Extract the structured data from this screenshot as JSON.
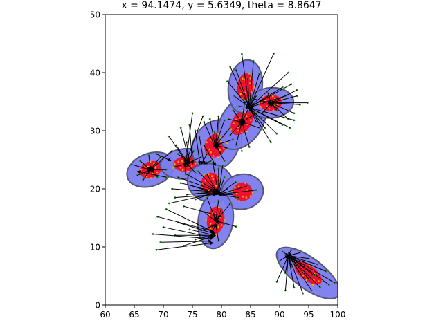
{
  "chart_data": {
    "type": "scatter",
    "title": "x = 94.1474, y = 5.6349, theta = 8.8647",
    "xlabel": "",
    "ylabel": "",
    "xlim": [
      60,
      100
    ],
    "ylim": [
      0,
      50
    ],
    "xticks": [
      "60",
      "65",
      "70",
      "75",
      "80",
      "85",
      "90",
      "95",
      "100"
    ],
    "yticks": [
      "0",
      "10",
      "20",
      "30",
      "40",
      "50"
    ],
    "grid": false,
    "legend": "none",
    "colors": {
      "outer_ellipse": "#7b7bf0",
      "outer_edge": "#555577",
      "inner_ellipse": "#ee1133",
      "point_outer": "#228b22",
      "point_inner": "#ffa500",
      "arrow": "#000000"
    },
    "clusters": [
      {
        "cx": 67.8,
        "cy": 23.3,
        "rx": 4.2,
        "ry": 2.8,
        "angle": 20,
        "irx": 2.0,
        "iry": 1.4
      },
      {
        "cx": 73.8,
        "cy": 24.3,
        "rx": 4.3,
        "ry": 2.6,
        "angle": 5,
        "irx": 2.1,
        "iry": 1.3
      },
      {
        "cx": 79.0,
        "cy": 27.5,
        "rx": 3.8,
        "ry": 4.6,
        "angle": -35,
        "irx": 1.8,
        "iry": 2.2
      },
      {
        "cx": 83.5,
        "cy": 31.5,
        "rx": 3.5,
        "ry": 5.2,
        "angle": -35,
        "irx": 1.6,
        "iry": 2.5
      },
      {
        "cx": 84.1,
        "cy": 37.6,
        "rx": 2.9,
        "ry": 4.6,
        "angle": -8,
        "irx": 1.4,
        "iry": 2.3
      },
      {
        "cx": 88.5,
        "cy": 34.8,
        "rx": 3.9,
        "ry": 2.6,
        "angle": 5,
        "irx": 1.9,
        "iry": 1.4
      },
      {
        "cx": 78.1,
        "cy": 21.0,
        "rx": 4.0,
        "ry": 3.3,
        "angle": -15,
        "irx": 1.6,
        "iry": 1.8
      },
      {
        "cx": 83.6,
        "cy": 19.5,
        "rx": 3.6,
        "ry": 3.0,
        "angle": 10,
        "irx": 1.7,
        "iry": 1.6
      },
      {
        "cx": 79.0,
        "cy": 14.6,
        "rx": 3.0,
        "ry": 4.9,
        "angle": -8,
        "irx": 1.5,
        "iry": 2.4
      },
      {
        "cx": 94.9,
        "cy": 5.5,
        "rx": 6.5,
        "ry": 2.6,
        "angle": -37,
        "irx": 2.8,
        "iry": 1.3
      }
    ],
    "vectors": [
      {
        "x": 68.8,
        "y": 9.5,
        "dx": 9.8,
        "dy": 1.2
      },
      {
        "x": 68.2,
        "y": 12.2,
        "dx": 10.3,
        "dy": -0.8
      },
      {
        "x": 69.5,
        "y": 10.8,
        "dx": 8.8,
        "dy": 0.2
      },
      {
        "x": 70.0,
        "y": 13.4,
        "dx": 8.5,
        "dy": -1.8
      },
      {
        "x": 69.0,
        "y": 15.2,
        "dx": 9.5,
        "dy": -2.5
      },
      {
        "x": 70.5,
        "y": 16.5,
        "dx": 8.3,
        "dy": -4.0
      },
      {
        "x": 72.0,
        "y": 12.0,
        "dx": 6.8,
        "dy": 0.0
      },
      {
        "x": 73.5,
        "y": 10.2,
        "dx": 5.5,
        "dy": 1.8
      },
      {
        "x": 72.5,
        "y": 14.2,
        "dx": 6.5,
        "dy": -2.0
      },
      {
        "x": 74.5,
        "y": 13.0,
        "dx": 4.3,
        "dy": -1.0
      },
      {
        "x": 75.5,
        "y": 11.3,
        "dx": 3.3,
        "dy": 0.8
      },
      {
        "x": 71.0,
        "y": 17.5,
        "dx": 8.0,
        "dy": 1.8
      },
      {
        "x": 72.0,
        "y": 18.5,
        "dx": 7.0,
        "dy": 0.5
      },
      {
        "x": 73.5,
        "y": 17.0,
        "dx": 5.5,
        "dy": -1.5
      },
      {
        "x": 74.0,
        "y": 19.0,
        "dx": 5.0,
        "dy": 0.5
      },
      {
        "x": 73.0,
        "y": 21.0,
        "dx": 6.0,
        "dy": -1.5
      },
      {
        "x": 71.5,
        "y": 20.0,
        "dx": 7.5,
        "dy": -0.5
      },
      {
        "x": 75.5,
        "y": 18.2,
        "dx": 3.8,
        "dy": 1.3
      },
      {
        "x": 77.0,
        "y": 16.0,
        "dx": 2.5,
        "dy": -2.0
      },
      {
        "x": 76.5,
        "y": 12.8,
        "dx": 2.3,
        "dy": 1.0
      },
      {
        "x": 81.5,
        "y": 17.5,
        "dx": -2.0,
        "dy": -2.5
      },
      {
        "x": 80.0,
        "y": 16.5,
        "dx": -0.8,
        "dy": -2.0
      },
      {
        "x": 82.5,
        "y": 13.5,
        "dx": -3.5,
        "dy": 1.0
      },
      {
        "x": 79.5,
        "y": 11.0,
        "dx": -0.5,
        "dy": 3.0
      },
      {
        "x": 78.0,
        "y": 11.5,
        "dx": 1.0,
        "dy": 2.5
      },
      {
        "x": 80.5,
        "y": 14.0,
        "dx": -1.5,
        "dy": 0.5
      },
      {
        "x": 77.5,
        "y": 18.5,
        "dx": 1.5,
        "dy": -4.0
      },
      {
        "x": 79.5,
        "y": 18.0,
        "dx": -0.5,
        "dy": -3.5
      },
      {
        "x": 74.0,
        "y": 22.5,
        "dx": 5.5,
        "dy": -3.0
      },
      {
        "x": 76.0,
        "y": 23.0,
        "dx": 3.3,
        "dy": -3.5
      },
      {
        "x": 72.5,
        "y": 22.0,
        "dx": 7.0,
        "dy": -2.5
      },
      {
        "x": 75.0,
        "y": 20.5,
        "dx": 4.5,
        "dy": -1.5
      },
      {
        "x": 76.0,
        "y": 19.2,
        "dx": 3.5,
        "dy": 0.0
      },
      {
        "x": 77.5,
        "y": 22.5,
        "dx": 2.0,
        "dy": -3.5
      },
      {
        "x": 80.5,
        "y": 22.0,
        "dx": -1.0,
        "dy": -3.0
      },
      {
        "x": 81.0,
        "y": 20.0,
        "dx": -1.5,
        "dy": -1.0
      },
      {
        "x": 82.0,
        "y": 19.0,
        "dx": -2.5,
        "dy": 0.0
      },
      {
        "x": 83.0,
        "y": 18.5,
        "dx": -3.5,
        "dy": 0.5
      },
      {
        "x": 84.5,
        "y": 20.5,
        "dx": -5.0,
        "dy": -1.5
      },
      {
        "x": 86.0,
        "y": 19.8,
        "dx": -6.5,
        "dy": -0.8
      },
      {
        "x": 82.5,
        "y": 21.2,
        "dx": -3.0,
        "dy": -2.2
      },
      {
        "x": 78.5,
        "y": 24.5,
        "dx": 1.0,
        "dy": -5.5
      },
      {
        "x": 79.5,
        "y": 23.5,
        "dx": 0.0,
        "dy": -4.5
      },
      {
        "x": 80.2,
        "y": 24.0,
        "dx": -0.7,
        "dy": -5.0
      },
      {
        "x": 64.5,
        "y": 24.2,
        "dx": 3.2,
        "dy": -0.9
      },
      {
        "x": 65.5,
        "y": 22.3,
        "dx": 2.3,
        "dy": 1.0
      },
      {
        "x": 66.5,
        "y": 21.5,
        "dx": 1.3,
        "dy": 1.8
      },
      {
        "x": 69.0,
        "y": 22.0,
        "dx": -1.2,
        "dy": 1.3
      },
      {
        "x": 70.5,
        "y": 23.3,
        "dx": -2.7,
        "dy": 0.0
      },
      {
        "x": 69.5,
        "y": 25.5,
        "dx": -1.7,
        "dy": -2.2
      },
      {
        "x": 67.5,
        "y": 25.8,
        "dx": 0.3,
        "dy": -2.5
      },
      {
        "x": 71.5,
        "y": 26.5,
        "dx": -3.7,
        "dy": -3.2
      },
      {
        "x": 70.5,
        "y": 22.0,
        "dx": -5.0,
        "dy": 1.0
      },
      {
        "x": 66.0,
        "y": 24.8,
        "dx": 1.8,
        "dy": -1.5
      },
      {
        "x": 68.8,
        "y": 26.0,
        "dx": 2.5,
        "dy": -1.2
      },
      {
        "x": 72.2,
        "y": 27.5,
        "dx": 2.0,
        "dy": -3.0
      },
      {
        "x": 71.0,
        "y": 29.0,
        "dx": 3.0,
        "dy": -4.5
      },
      {
        "x": 72.5,
        "y": 26.0,
        "dx": 2.0,
        "dy": -1.5
      },
      {
        "x": 74.0,
        "y": 28.0,
        "dx": 0.5,
        "dy": -3.5
      },
      {
        "x": 75.2,
        "y": 26.5,
        "dx": -1.2,
        "dy": -2.2
      },
      {
        "x": 76.5,
        "y": 25.5,
        "dx": -2.5,
        "dy": -1.2
      },
      {
        "x": 73.8,
        "y": 22.5,
        "dx": 0.0,
        "dy": 1.8
      },
      {
        "x": 75.5,
        "y": 22.8,
        "dx": -1.5,
        "dy": 1.5
      },
      {
        "x": 72.0,
        "y": 23.8,
        "dx": 2.0,
        "dy": 0.5
      },
      {
        "x": 73.0,
        "y": 30.5,
        "dx": 1.5,
        "dy": -6.0
      },
      {
        "x": 74.5,
        "y": 31.0,
        "dx": 0.5,
        "dy": -6.8
      },
      {
        "x": 75.5,
        "y": 30.0,
        "dx": 0.8,
        "dy": -5.8
      },
      {
        "x": 76.2,
        "y": 29.0,
        "dx": 0.8,
        "dy": -4.8
      },
      {
        "x": 77.0,
        "y": 27.5,
        "dx": 2.0,
        "dy": -3.5
      },
      {
        "x": 77.5,
        "y": 26.0,
        "dx": -1.0,
        "dy": -1.8
      },
      {
        "x": 78.2,
        "y": 24.8,
        "dx": -1.2,
        "dy": -0.5
      },
      {
        "x": 77.0,
        "y": 31.5,
        "dx": 2.0,
        "dy": -4.5
      },
      {
        "x": 78.0,
        "y": 32.0,
        "dx": 1.0,
        "dy": -5.0
      },
      {
        "x": 79.5,
        "y": 32.5,
        "dx": -0.5,
        "dy": -5.0
      },
      {
        "x": 80.5,
        "y": 31.8,
        "dx": -1.5,
        "dy": -4.3
      },
      {
        "x": 81.5,
        "y": 30.5,
        "dx": -2.5,
        "dy": -3.0
      },
      {
        "x": 82.0,
        "y": 28.5,
        "dx": -3.0,
        "dy": -1.0
      },
      {
        "x": 81.0,
        "y": 27.0,
        "dx": -2.0,
        "dy": 0.5
      },
      {
        "x": 80.0,
        "y": 26.0,
        "dx": -1.0,
        "dy": 1.5
      },
      {
        "x": 78.8,
        "y": 29.8,
        "dx": 0.2,
        "dy": -2.3
      },
      {
        "x": 76.8,
        "y": 32.5,
        "dx": -3.0,
        "dy": -8.2
      },
      {
        "x": 75.0,
        "y": 33.0,
        "dx": -1.2,
        "dy": -8.8
      },
      {
        "x": 80.5,
        "y": 24.8,
        "dx": -1.5,
        "dy": 2.7
      },
      {
        "x": 81.5,
        "y": 29.2,
        "dx": 2.0,
        "dy": 2.3
      },
      {
        "x": 82.5,
        "y": 27.5,
        "dx": 1.0,
        "dy": 4.0
      },
      {
        "x": 83.5,
        "y": 26.5,
        "dx": 0.0,
        "dy": 5.0
      },
      {
        "x": 84.8,
        "y": 27.2,
        "dx": -1.3,
        "dy": 4.3
      },
      {
        "x": 86.5,
        "y": 30.5,
        "dx": -3.0,
        "dy": 1.0
      },
      {
        "x": 86.0,
        "y": 33.0,
        "dx": -2.5,
        "dy": -1.5
      },
      {
        "x": 82.0,
        "y": 33.5,
        "dx": 1.5,
        "dy": -2.0
      },
      {
        "x": 81.2,
        "y": 32.0,
        "dx": 2.3,
        "dy": -0.5
      },
      {
        "x": 84.0,
        "y": 35.0,
        "dx": -0.5,
        "dy": -3.5
      },
      {
        "x": 85.0,
        "y": 34.5,
        "dx": -1.5,
        "dy": -3.0
      },
      {
        "x": 82.5,
        "y": 40.5,
        "dx": 2.3,
        "dy": -6.5
      },
      {
        "x": 83.5,
        "y": 43.2,
        "dx": 1.3,
        "dy": -9.2
      },
      {
        "x": 81.5,
        "y": 41.0,
        "dx": 3.3,
        "dy": -7.0
      },
      {
        "x": 81.0,
        "y": 38.5,
        "dx": 3.8,
        "dy": -4.5
      },
      {
        "x": 82.2,
        "y": 36.0,
        "dx": 2.6,
        "dy": -2.0
      },
      {
        "x": 83.0,
        "y": 34.2,
        "dx": 1.8,
        "dy": -0.2
      },
      {
        "x": 86.0,
        "y": 36.0,
        "dx": -1.2,
        "dy": -2.0
      },
      {
        "x": 86.5,
        "y": 39.8,
        "dx": -1.7,
        "dy": -5.8
      },
      {
        "x": 85.5,
        "y": 42.0,
        "dx": -0.7,
        "dy": -8.0
      },
      {
        "x": 84.5,
        "y": 39.0,
        "dx": 0.3,
        "dy": -5.0
      },
      {
        "x": 89.0,
        "y": 43.3,
        "dx": -4.2,
        "dy": -9.3
      },
      {
        "x": 91.5,
        "y": 40.0,
        "dx": -6.7,
        "dy": -6.0
      },
      {
        "x": 92.0,
        "y": 38.0,
        "dx": -7.2,
        "dy": -4.0
      },
      {
        "x": 91.0,
        "y": 36.0,
        "dx": -6.2,
        "dy": -2.0
      },
      {
        "x": 90.5,
        "y": 37.5,
        "dx": -5.7,
        "dy": -3.5
      },
      {
        "x": 93.0,
        "y": 37.0,
        "dx": -4.5,
        "dy": -2.2
      },
      {
        "x": 93.5,
        "y": 34.5,
        "dx": -5.0,
        "dy": 0.3
      },
      {
        "x": 92.5,
        "y": 33.0,
        "dx": -4.0,
        "dy": 1.8
      },
      {
        "x": 91.5,
        "y": 32.0,
        "dx": -3.0,
        "dy": 2.8
      },
      {
        "x": 90.5,
        "y": 31.0,
        "dx": -5.7,
        "dy": 3.0
      },
      {
        "x": 89.5,
        "y": 29.5,
        "dx": -4.7,
        "dy": 4.5
      },
      {
        "x": 88.5,
        "y": 28.0,
        "dx": -3.7,
        "dy": 6.0
      },
      {
        "x": 87.5,
        "y": 30.5,
        "dx": -2.7,
        "dy": 3.5
      },
      {
        "x": 86.0,
        "y": 31.5,
        "dx": -1.2,
        "dy": 2.5
      },
      {
        "x": 91.8,
        "y": 30.5,
        "dx": -7.0,
        "dy": 3.5
      },
      {
        "x": 92.5,
        "y": 31.8,
        "dx": -7.7,
        "dy": 2.2
      },
      {
        "x": 94.8,
        "y": 34.8,
        "dx": -6.3,
        "dy": 0.0
      },
      {
        "x": 93.0,
        "y": 36.0,
        "dx": -4.5,
        "dy": -1.2
      },
      {
        "x": 88.0,
        "y": 36.5,
        "dx": 0.5,
        "dy": -1.7
      },
      {
        "x": 87.0,
        "y": 33.0,
        "dx": 1.5,
        "dy": 1.8
      },
      {
        "x": 85.5,
        "y": 35.5,
        "dx": 3.0,
        "dy": -0.7
      },
      {
        "x": 89.5,
        "y": 33.5,
        "dx": -1.0,
        "dy": 1.3
      },
      {
        "x": 89.5,
        "y": 4.0,
        "dx": 2.0,
        "dy": 4.5
      },
      {
        "x": 91.0,
        "y": 2.5,
        "dx": 0.5,
        "dy": 6.0
      },
      {
        "x": 92.5,
        "y": 3.0,
        "dx": -1.0,
        "dy": 5.5
      },
      {
        "x": 94.0,
        "y": 2.0,
        "dx": -2.5,
        "dy": 6.5
      },
      {
        "x": 95.5,
        "y": 2.5,
        "dx": -4.0,
        "dy": 6.0
      },
      {
        "x": 97.0,
        "y": 3.0,
        "dx": -5.5,
        "dy": 5.5
      },
      {
        "x": 98.5,
        "y": 3.5,
        "dx": -7.0,
        "dy": 5.0
      },
      {
        "x": 99.5,
        "y": 3.8,
        "dx": -8.0,
        "dy": 4.7
      },
      {
        "x": 98.0,
        "y": 5.8,
        "dx": -6.5,
        "dy": 2.7
      },
      {
        "x": 96.5,
        "y": 7.0,
        "dx": -5.0,
        "dy": 1.5
      },
      {
        "x": 95.0,
        "y": 8.0,
        "dx": -3.5,
        "dy": 0.5
      },
      {
        "x": 93.5,
        "y": 9.0,
        "dx": -2.0,
        "dy": -0.5
      },
      {
        "x": 92.0,
        "y": 9.5,
        "dx": -0.5,
        "dy": -1.0
      },
      {
        "x": 90.5,
        "y": 9.2,
        "dx": 1.0,
        "dy": -0.7
      },
      {
        "x": 89.8,
        "y": 7.5,
        "dx": 1.7,
        "dy": 1.0
      },
      {
        "x": 93.5,
        "y": 5.5,
        "dx": -2.0,
        "dy": 3.0
      },
      {
        "x": 95.0,
        "y": 4.5,
        "dx": -3.5,
        "dy": 4.0
      },
      {
        "x": 96.0,
        "y": 5.0,
        "dx": -4.5,
        "dy": 3.5
      },
      {
        "x": 97.5,
        "y": 6.0,
        "dx": -6.0,
        "dy": 2.5
      },
      {
        "x": 92.0,
        "y": 6.5,
        "dx": -0.5,
        "dy": 2.0
      },
      {
        "x": 91.0,
        "y": 5.5,
        "dx": 0.5,
        "dy": 3.0
      }
    ]
  }
}
